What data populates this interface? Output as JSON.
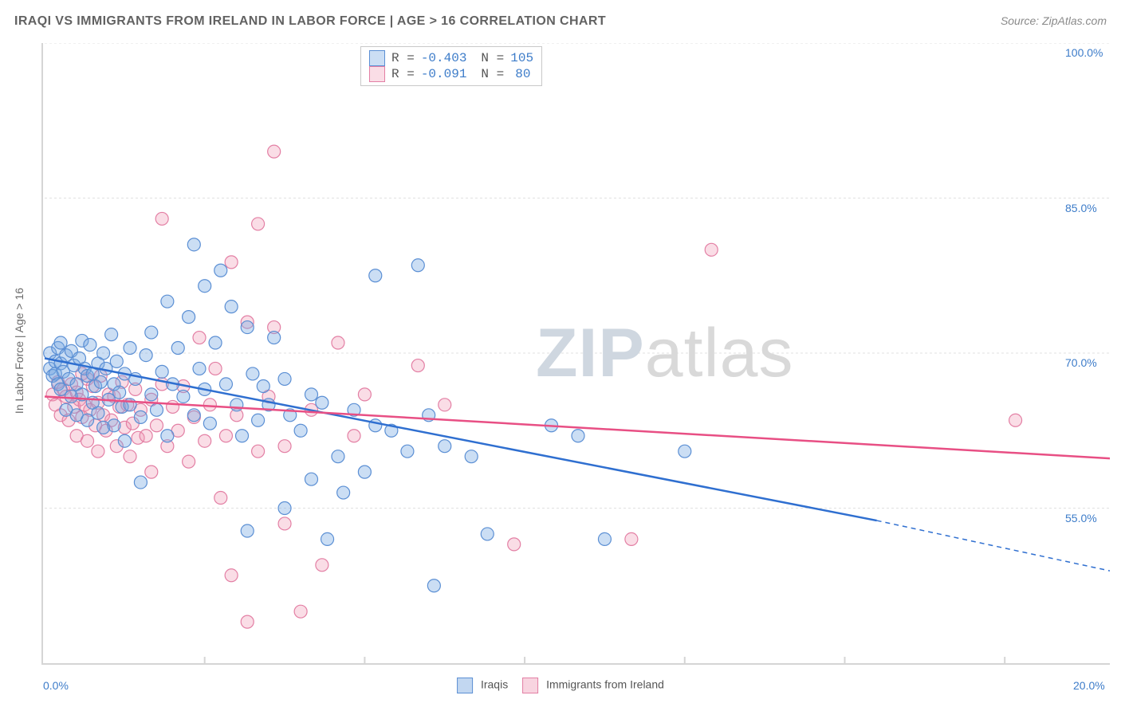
{
  "title": "IRAQI VS IMMIGRANTS FROM IRELAND IN LABOR FORCE | AGE > 16 CORRELATION CHART",
  "source": "Source: ZipAtlas.com",
  "y_axis_label": "In Labor Force | Age > 16",
  "watermark_bold": "ZIP",
  "watermark_rest": "atlas",
  "chart": {
    "type": "scatter",
    "xlim": [
      0,
      20
    ],
    "ylim": [
      40,
      100
    ],
    "xticks": [
      0,
      3,
      6,
      9,
      12,
      15,
      18,
      20
    ],
    "xtick_labels": {
      "0": "0.0%",
      "20": "20.0%"
    },
    "yticks": [
      55,
      70,
      85,
      100
    ],
    "ytick_suffix": "%",
    "grid_color": "#e0e0e0",
    "grid_dash": "3,3",
    "background_color": "#ffffff",
    "marker_radius": 8,
    "marker_stroke_width": 1.2,
    "trend_line_width": 2.5,
    "series": [
      {
        "name": "Iraqis",
        "fill": "rgba(119,167,225,0.38)",
        "stroke": "#5b8fd4",
        "trend_color": "#2f6fd0",
        "R": "-0.403",
        "N": "105",
        "trend": {
          "x1": 0,
          "y1": 69.5,
          "x2": 15.6,
          "y2": 53.8,
          "dash_to_x": 20,
          "dash_to_y": 48.9
        },
        "points": [
          [
            0.1,
            68.5
          ],
          [
            0.1,
            70.0
          ],
          [
            0.15,
            67.8
          ],
          [
            0.2,
            69.2
          ],
          [
            0.2,
            68.0
          ],
          [
            0.25,
            70.5
          ],
          [
            0.25,
            67.0
          ],
          [
            0.3,
            69.0
          ],
          [
            0.3,
            66.5
          ],
          [
            0.3,
            71.0
          ],
          [
            0.35,
            68.2
          ],
          [
            0.4,
            64.5
          ],
          [
            0.4,
            69.8
          ],
          [
            0.45,
            67.5
          ],
          [
            0.5,
            70.2
          ],
          [
            0.5,
            65.8
          ],
          [
            0.55,
            68.8
          ],
          [
            0.6,
            67.0
          ],
          [
            0.6,
            64.0
          ],
          [
            0.65,
            69.5
          ],
          [
            0.7,
            66.0
          ],
          [
            0.7,
            71.2
          ],
          [
            0.75,
            68.5
          ],
          [
            0.8,
            63.5
          ],
          [
            0.8,
            67.8
          ],
          [
            0.85,
            70.8
          ],
          [
            0.9,
            65.2
          ],
          [
            0.9,
            68.0
          ],
          [
            0.95,
            66.8
          ],
          [
            1.0,
            69.0
          ],
          [
            1.0,
            64.2
          ],
          [
            1.05,
            67.2
          ],
          [
            1.1,
            70.0
          ],
          [
            1.1,
            62.8
          ],
          [
            1.15,
            68.5
          ],
          [
            1.2,
            65.5
          ],
          [
            1.25,
            71.8
          ],
          [
            1.3,
            67.0
          ],
          [
            1.3,
            63.0
          ],
          [
            1.35,
            69.2
          ],
          [
            1.4,
            66.2
          ],
          [
            1.45,
            64.8
          ],
          [
            1.5,
            68.0
          ],
          [
            1.5,
            61.5
          ],
          [
            1.6,
            70.5
          ],
          [
            1.6,
            65.0
          ],
          [
            1.7,
            67.5
          ],
          [
            1.8,
            63.8
          ],
          [
            1.8,
            57.5
          ],
          [
            1.9,
            69.8
          ],
          [
            2.0,
            66.0
          ],
          [
            2.0,
            72.0
          ],
          [
            2.1,
            64.5
          ],
          [
            2.2,
            68.2
          ],
          [
            2.3,
            75.0
          ],
          [
            2.3,
            62.0
          ],
          [
            2.4,
            67.0
          ],
          [
            2.5,
            70.5
          ],
          [
            2.6,
            65.8
          ],
          [
            2.7,
            73.5
          ],
          [
            2.8,
            80.5
          ],
          [
            2.8,
            64.0
          ],
          [
            2.9,
            68.5
          ],
          [
            3.0,
            76.5
          ],
          [
            3.0,
            66.5
          ],
          [
            3.1,
            63.2
          ],
          [
            3.2,
            71.0
          ],
          [
            3.3,
            78.0
          ],
          [
            3.4,
            67.0
          ],
          [
            3.5,
            74.5
          ],
          [
            3.6,
            65.0
          ],
          [
            3.7,
            62.0
          ],
          [
            3.8,
            72.5
          ],
          [
            3.8,
            52.8
          ],
          [
            3.9,
            68.0
          ],
          [
            4.0,
            63.5
          ],
          [
            4.1,
            66.8
          ],
          [
            4.2,
            65.0
          ],
          [
            4.3,
            71.5
          ],
          [
            4.5,
            55.0
          ],
          [
            4.5,
            67.5
          ],
          [
            4.6,
            64.0
          ],
          [
            4.8,
            62.5
          ],
          [
            5.0,
            66.0
          ],
          [
            5.0,
            57.8
          ],
          [
            5.2,
            65.2
          ],
          [
            5.3,
            52.0
          ],
          [
            5.5,
            60.0
          ],
          [
            5.6,
            56.5
          ],
          [
            5.8,
            64.5
          ],
          [
            6.0,
            58.5
          ],
          [
            6.2,
            63.0
          ],
          [
            6.2,
            77.5
          ],
          [
            6.5,
            62.5
          ],
          [
            6.8,
            60.5
          ],
          [
            7.0,
            78.5
          ],
          [
            7.2,
            64.0
          ],
          [
            7.3,
            47.5
          ],
          [
            7.5,
            61.0
          ],
          [
            8.0,
            60.0
          ],
          [
            8.3,
            52.5
          ],
          [
            9.5,
            63.0
          ],
          [
            10.0,
            62.0
          ],
          [
            10.5,
            52.0
          ],
          [
            12.0,
            60.5
          ]
        ]
      },
      {
        "name": "Immigrants from Ireland",
        "fill": "rgba(238,148,178,0.32)",
        "stroke": "#e37fa4",
        "trend_color": "#e84f84",
        "R": "-0.091",
        "N": "80",
        "trend": {
          "x1": 0,
          "y1": 65.8,
          "x2": 20,
          "y2": 59.8
        },
        "points": [
          [
            0.15,
            66.0
          ],
          [
            0.2,
            65.0
          ],
          [
            0.25,
            67.2
          ],
          [
            0.3,
            64.0
          ],
          [
            0.35,
            66.5
          ],
          [
            0.4,
            65.8
          ],
          [
            0.45,
            63.5
          ],
          [
            0.5,
            67.0
          ],
          [
            0.55,
            64.8
          ],
          [
            0.6,
            66.2
          ],
          [
            0.6,
            62.0
          ],
          [
            0.65,
            65.5
          ],
          [
            0.7,
            68.0
          ],
          [
            0.7,
            63.8
          ],
          [
            0.75,
            65.0
          ],
          [
            0.8,
            67.5
          ],
          [
            0.8,
            61.5
          ],
          [
            0.85,
            64.5
          ],
          [
            0.9,
            66.8
          ],
          [
            0.95,
            63.0
          ],
          [
            1.0,
            65.2
          ],
          [
            1.0,
            60.5
          ],
          [
            1.05,
            67.8
          ],
          [
            1.1,
            64.0
          ],
          [
            1.15,
            62.5
          ],
          [
            1.2,
            66.0
          ],
          [
            1.25,
            63.5
          ],
          [
            1.3,
            65.8
          ],
          [
            1.35,
            61.0
          ],
          [
            1.4,
            64.8
          ],
          [
            1.45,
            67.2
          ],
          [
            1.5,
            62.8
          ],
          [
            1.55,
            65.0
          ],
          [
            1.6,
            60.0
          ],
          [
            1.65,
            63.2
          ],
          [
            1.7,
            66.5
          ],
          [
            1.75,
            61.8
          ],
          [
            1.8,
            64.5
          ],
          [
            1.9,
            62.0
          ],
          [
            2.0,
            65.5
          ],
          [
            2.0,
            58.5
          ],
          [
            2.1,
            63.0
          ],
          [
            2.2,
            67.0
          ],
          [
            2.2,
            83.0
          ],
          [
            2.3,
            61.0
          ],
          [
            2.4,
            64.8
          ],
          [
            2.5,
            62.5
          ],
          [
            2.6,
            66.8
          ],
          [
            2.7,
            59.5
          ],
          [
            2.8,
            63.8
          ],
          [
            2.9,
            71.5
          ],
          [
            3.0,
            61.5
          ],
          [
            3.1,
            65.0
          ],
          [
            3.2,
            68.5
          ],
          [
            3.3,
            56.0
          ],
          [
            3.4,
            62.0
          ],
          [
            3.5,
            78.8
          ],
          [
            3.5,
            48.5
          ],
          [
            3.6,
            64.0
          ],
          [
            3.8,
            73.0
          ],
          [
            3.8,
            44.0
          ],
          [
            4.0,
            60.5
          ],
          [
            4.0,
            82.5
          ],
          [
            4.2,
            65.8
          ],
          [
            4.3,
            72.5
          ],
          [
            4.3,
            89.5
          ],
          [
            4.5,
            61.0
          ],
          [
            4.5,
            53.5
          ],
          [
            4.8,
            45.0
          ],
          [
            5.0,
            64.5
          ],
          [
            5.2,
            49.5
          ],
          [
            5.5,
            71.0
          ],
          [
            5.8,
            62.0
          ],
          [
            6.0,
            66.0
          ],
          [
            7.0,
            68.8
          ],
          [
            7.5,
            65.0
          ],
          [
            8.8,
            51.5
          ],
          [
            11.0,
            52.0
          ],
          [
            12.5,
            80.0
          ],
          [
            18.2,
            63.5
          ]
        ]
      }
    ]
  },
  "bottom_legend": [
    {
      "label": "Iraqis",
      "fill": "rgba(119,167,225,0.45)",
      "stroke": "#5b8fd4"
    },
    {
      "label": "Immigrants from Ireland",
      "fill": "rgba(238,148,178,0.4)",
      "stroke": "#e37fa4"
    }
  ]
}
